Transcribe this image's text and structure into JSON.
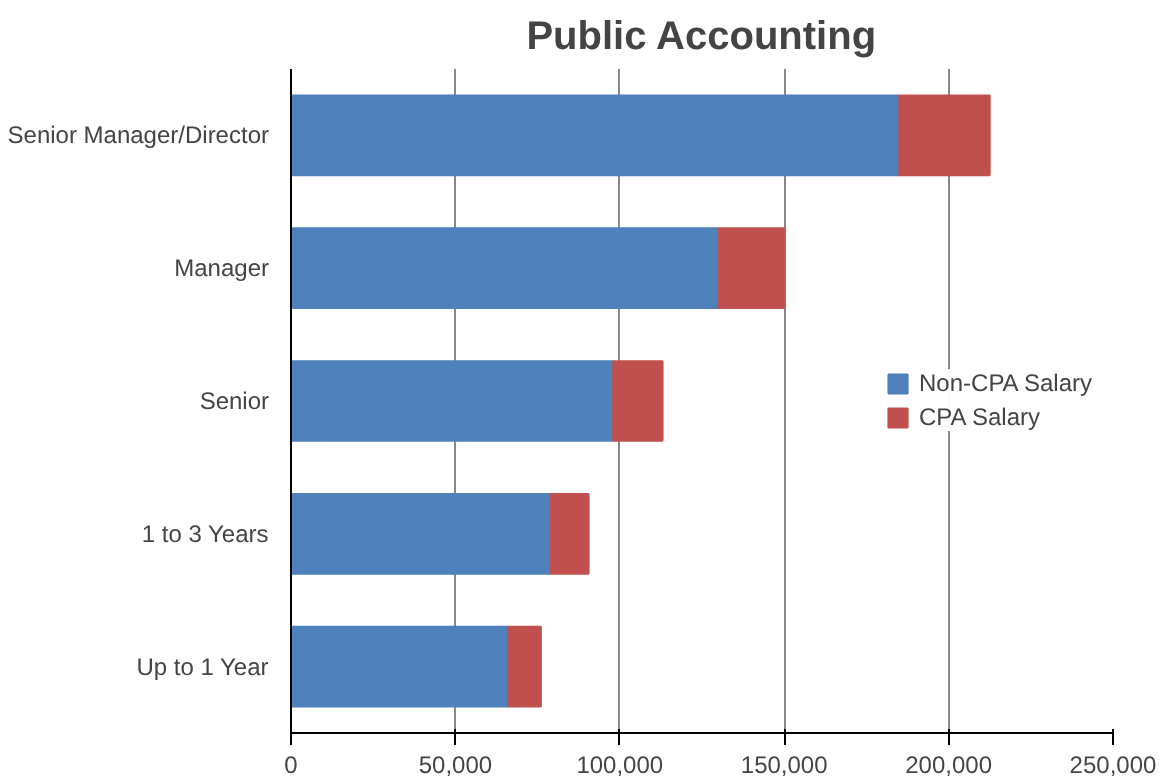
{
  "chart_data": {
    "type": "bar",
    "title": "Public Accounting",
    "orientation": "horizontal",
    "stacked": true,
    "categories": [
      "Senior Manager/Director",
      "Manager",
      "Senior",
      "1 to 3 Years",
      "Up to 1 Year"
    ],
    "series": [
      {
        "name": "Non-CPA Salary",
        "color": "#4f81bd",
        "values": [
          185000,
          130000,
          98000,
          79000,
          66000
        ]
      },
      {
        "name": "CPA Salary",
        "color": "#c0504d",
        "values": [
          27500,
          20000,
          15000,
          11500,
          10000
        ]
      }
    ],
    "xlim": [
      0,
      250000
    ],
    "xticks": [
      {
        "value": 0,
        "label": "0"
      },
      {
        "value": 50000,
        "label": "50,000"
      },
      {
        "value": 100000,
        "label": "100,000"
      },
      {
        "value": 150000,
        "label": "150,000"
      },
      {
        "value": 200000,
        "label": "200,000"
      },
      {
        "value": 250000,
        "label": "250,000"
      }
    ],
    "grid": "x",
    "legend": "right"
  }
}
